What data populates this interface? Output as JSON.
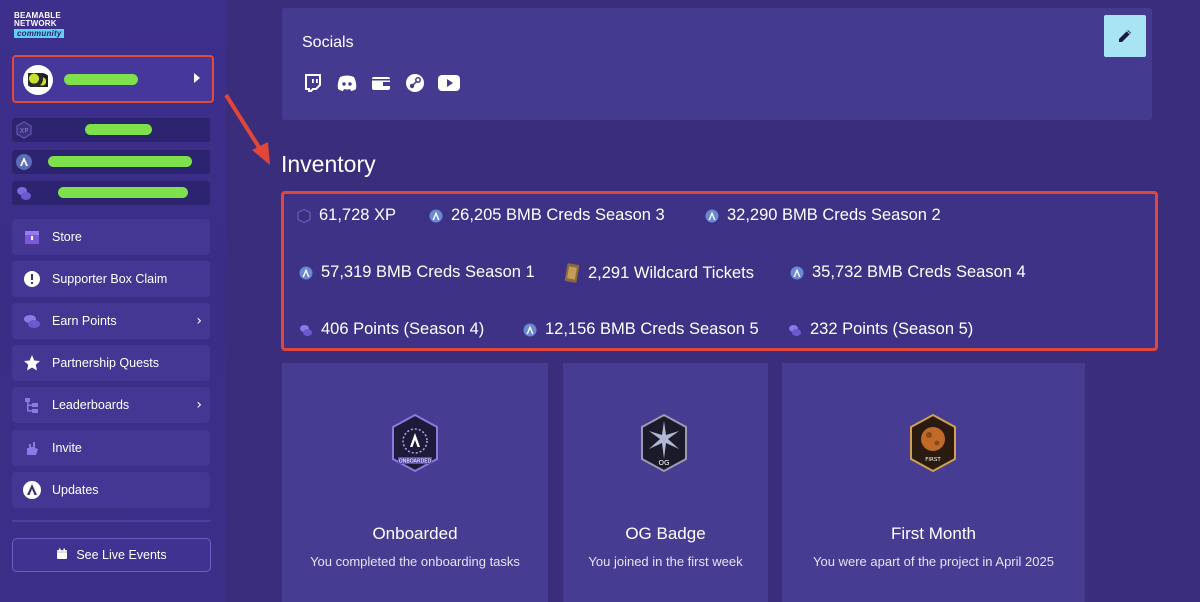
{
  "logo": {
    "line1": "BEAMABLE",
    "line2": "NETWORK",
    "line3": "community"
  },
  "sidebar": {
    "menu": [
      {
        "label": "Store",
        "icon": "chest-icon"
      },
      {
        "label": "Supporter Box Claim",
        "icon": "alert-icon"
      },
      {
        "label": "Earn Points",
        "icon": "coins-icon",
        "has_chevron": true
      },
      {
        "label": "Partnership Quests",
        "icon": "star-icon"
      },
      {
        "label": "Leaderboards",
        "icon": "tree-icon",
        "has_chevron": true
      },
      {
        "label": "Invite",
        "icon": "hand-icon"
      },
      {
        "label": "Updates",
        "icon": "beamable-logo-icon"
      }
    ],
    "live_events_label": "See Live Events",
    "chevron": "›"
  },
  "socials": {
    "title": "Socials",
    "icons": [
      "twitch-icon",
      "discord-icon",
      "wallet-icon",
      "steam-icon",
      "youtube-icon"
    ]
  },
  "inventory": {
    "title": "Inventory",
    "items": [
      {
        "text": "61,728 XP",
        "icon": "xp-icon"
      },
      {
        "text": "26,205 BMB Creds Season 3",
        "icon": "bmb-icon"
      },
      {
        "text": "32,290 BMB Creds Season 2",
        "icon": "bmb-icon"
      },
      {
        "text": "57,319 BMB Creds Season 1",
        "icon": "bmb-icon"
      },
      {
        "text": "2,291 Wildcard Tickets",
        "icon": "ticket-icon"
      },
      {
        "text": "35,732 BMB Creds Season 4",
        "icon": "bmb-icon"
      },
      {
        "text": "406 Points (Season 4)",
        "icon": "points-icon"
      },
      {
        "text": "12,156 BMB Creds Season 5",
        "icon": "bmb-icon"
      },
      {
        "text": "232 Points (Season 5)",
        "icon": "points-icon"
      }
    ]
  },
  "badges": [
    {
      "title": "Onboarded",
      "desc": "You completed the onboarding tasks",
      "badge_text": "ONBOARDED"
    },
    {
      "title": "OG Badge",
      "desc": "You joined in the first week",
      "badge_text": "OG"
    },
    {
      "title": "First Month",
      "desc": "You were apart of the project in April 2025",
      "badge_text": "FIRST"
    }
  ],
  "colors": {
    "highlight": "#e0473a",
    "green_bar": "#7ee04a",
    "edit_button": "#a9e4f5"
  }
}
